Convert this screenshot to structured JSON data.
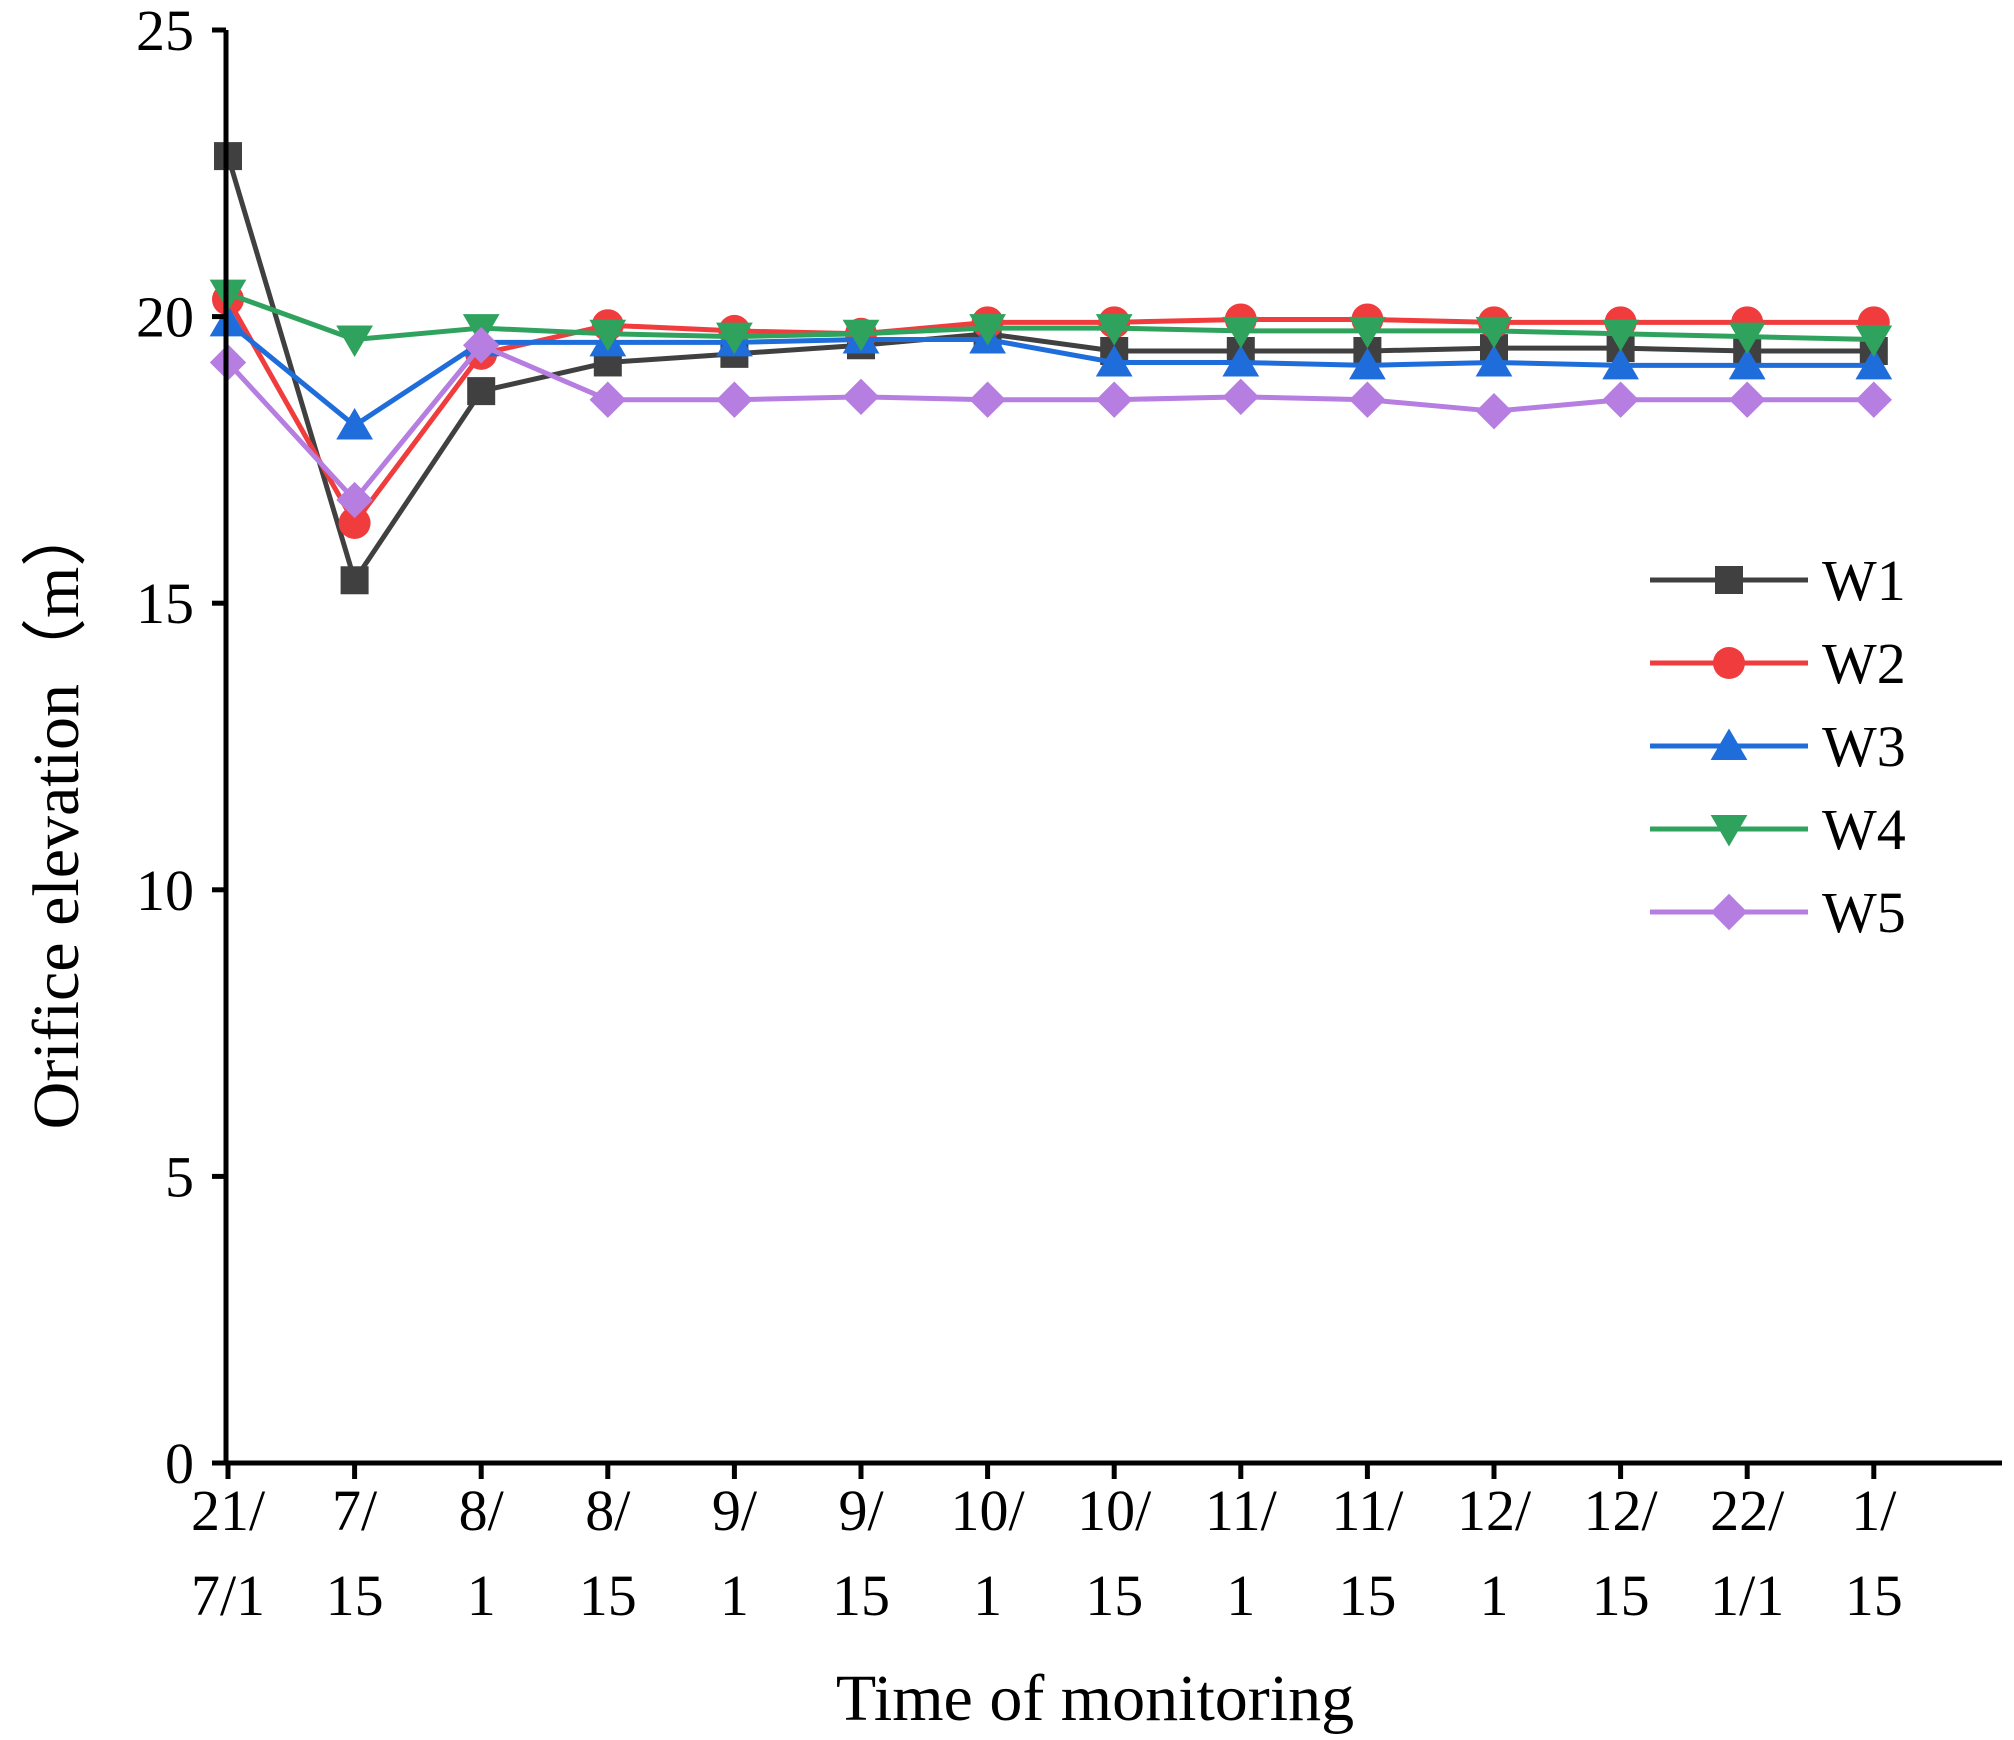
{
  "chart_data": {
    "type": "line",
    "title": "",
    "xlabel": "Time of monitoring",
    "ylabel": "Orifice elevation（m）",
    "ylim": [
      0,
      25
    ],
    "yticks": [
      0,
      5,
      10,
      15,
      20,
      25
    ],
    "categories": [
      [
        "21/",
        "7/1"
      ],
      [
        "7/",
        "15"
      ],
      [
        "8/",
        "1"
      ],
      [
        "8/",
        "15"
      ],
      [
        "9/",
        "1"
      ],
      [
        "9/",
        "15"
      ],
      [
        "10/",
        "1"
      ],
      [
        "10/",
        "15"
      ],
      [
        "11/",
        "1"
      ],
      [
        "11/",
        "15"
      ],
      [
        "12/",
        "1"
      ],
      [
        "12/",
        "15"
      ],
      [
        "22/",
        "1/1"
      ],
      [
        "1/",
        "15"
      ]
    ],
    "legend_position": "right",
    "series": [
      {
        "name": "W1",
        "color": "#404040",
        "marker": "square",
        "values": [
          22.8,
          15.4,
          18.7,
          19.2,
          19.35,
          19.5,
          19.7,
          19.4,
          19.4,
          19.4,
          19.45,
          19.45,
          19.4,
          19.4
        ]
      },
      {
        "name": "W2",
        "color": "#f03c3c",
        "marker": "circle",
        "values": [
          20.3,
          16.4,
          19.35,
          19.85,
          19.75,
          19.7,
          19.9,
          19.9,
          19.95,
          19.95,
          19.9,
          19.9,
          19.9,
          19.9
        ]
      },
      {
        "name": "W3",
        "color": "#1f6ddb",
        "marker": "triangle-up",
        "values": [
          19.9,
          18.1,
          19.55,
          19.55,
          19.55,
          19.6,
          19.6,
          19.2,
          19.2,
          19.15,
          19.2,
          19.15,
          19.15,
          19.15
        ]
      },
      {
        "name": "W4",
        "color": "#2fa35e",
        "marker": "triangle-down",
        "values": [
          20.4,
          19.6,
          19.8,
          19.7,
          19.65,
          19.7,
          19.8,
          19.8,
          19.75,
          19.75,
          19.75,
          19.7,
          19.65,
          19.6
        ]
      },
      {
        "name": "W5",
        "color": "#b57ee0",
        "marker": "diamond",
        "values": [
          19.2,
          16.8,
          19.5,
          18.55,
          18.55,
          18.6,
          18.55,
          18.55,
          18.6,
          18.55,
          18.35,
          18.55,
          18.55,
          18.55
        ]
      }
    ]
  }
}
